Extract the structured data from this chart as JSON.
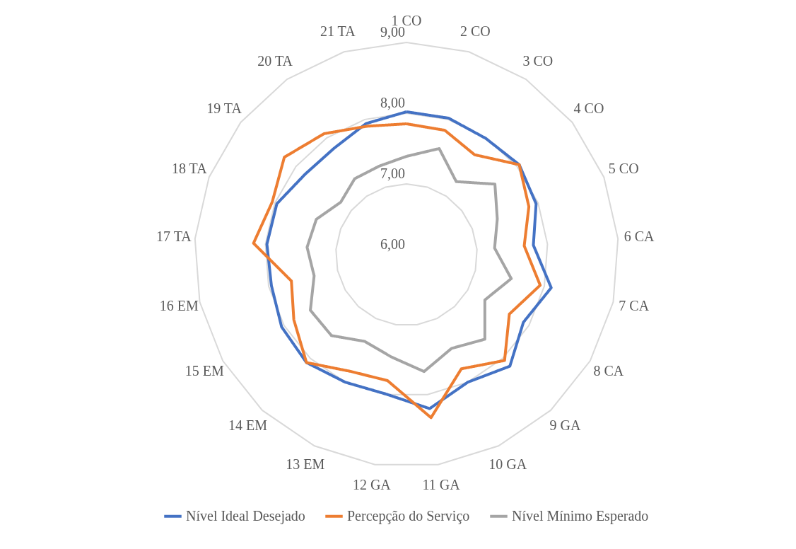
{
  "chart_data": {
    "type": "radar",
    "categories": [
      "1 CO",
      "2 CO",
      "3 CO",
      "4 CO",
      "5 CO",
      "6 CA",
      "7 CA",
      "8 CA",
      "9 GA",
      "10 GA",
      "11 GA",
      "12 GA",
      "13 EM",
      "14 EM",
      "15 EM",
      "16 EM",
      "17 TA",
      "18 TA",
      "19 TA",
      "20 TA",
      "21 TA"
    ],
    "ylim": [
      6,
      9
    ],
    "yticks": [
      {
        "value": 6,
        "label": "6,00"
      },
      {
        "value": 7,
        "label": "7,00"
      },
      {
        "value": 8,
        "label": "8,00"
      },
      {
        "value": 9,
        "label": "9,00"
      }
    ],
    "grid": true,
    "legend": "bottom",
    "marker": "none",
    "series": [
      {
        "name": "Nível Ideal Desejado",
        "color": "#4472c4",
        "values": [
          8.02,
          8.02,
          7.99,
          8.04,
          7.97,
          7.8,
          8.1,
          7.91,
          8.15,
          8.0,
          8.2,
          7.99,
          8.0,
          8.08,
          8.04,
          7.96,
          7.98,
          7.97,
          7.83,
          7.82,
          7.94
        ]
      },
      {
        "name": "Percepção do Serviço",
        "color": "#ed7d31",
        "values": [
          7.85,
          7.84,
          7.71,
          8.04,
          7.86,
          7.67,
          7.94,
          7.68,
          8.04,
          7.79,
          8.33,
          7.8,
          7.83,
          8.08,
          7.84,
          7.67,
          8.17,
          8.04,
          8.21,
          8.07,
          7.9
        ]
      },
      {
        "name": "Nível Mínimo Esperado",
        "color": "#a5a5a5",
        "values": [
          7.39,
          7.57,
          7.25,
          7.6,
          7.38,
          7.25,
          7.52,
          7.28,
          7.63,
          7.47,
          7.67,
          7.46,
          7.36,
          7.56,
          7.57,
          7.34,
          7.41,
          7.37,
          7.19,
          7.3,
          7.31
        ]
      }
    ]
  }
}
